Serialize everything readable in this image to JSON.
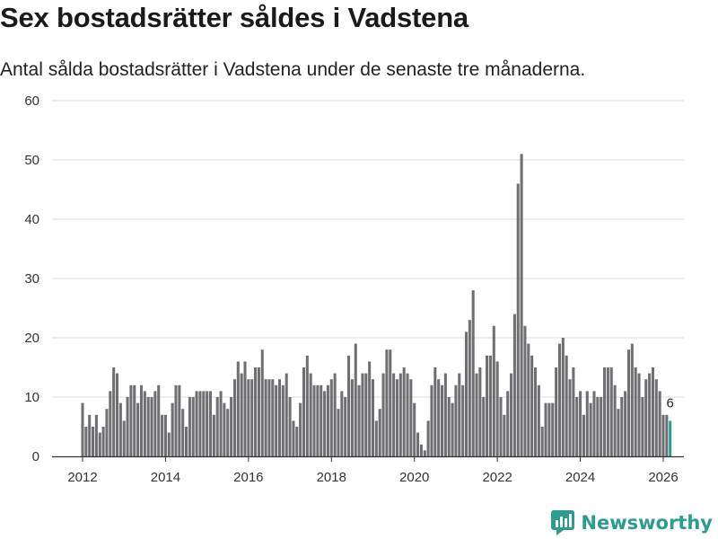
{
  "title": "Sex bostadsrätter såldes i Vadstena",
  "subtitle": "Antal sålda bostadsrätter i Vadstena under de senaste tre månaderna.",
  "brand": {
    "name": "Newsworthy",
    "icon": "bar-chart-bubble-icon"
  },
  "colors": {
    "bar": "#6f6f73",
    "highlight": "#2a9d8f",
    "grid": "#dddddd",
    "axis": "#333333",
    "brand": "#2a9d8f"
  },
  "chart_data": {
    "type": "bar",
    "title": "Sex bostadsrätter såldes i Vadstena",
    "xlabel": "",
    "ylabel": "",
    "ylim": [
      0,
      60
    ],
    "yticks": [
      0,
      10,
      20,
      30,
      40,
      50,
      60
    ],
    "xticks": [
      "2012",
      "2014",
      "2016",
      "2018",
      "2020",
      "2022",
      "2024",
      "2026"
    ],
    "start": "2012-01",
    "frequency": "monthly",
    "values": [
      9,
      5,
      7,
      5,
      7,
      4,
      5,
      8,
      11,
      15,
      14,
      9,
      6,
      10,
      12,
      12,
      9,
      12,
      11,
      10,
      10,
      11,
      12,
      7,
      7,
      4,
      9,
      12,
      12,
      8,
      5,
      10,
      10,
      11,
      11,
      11,
      11,
      11,
      7,
      10,
      11,
      9,
      8,
      10,
      13,
      16,
      14,
      16,
      13,
      13,
      15,
      15,
      18,
      13,
      13,
      13,
      12,
      13,
      12,
      14,
      10,
      6,
      5,
      9,
      15,
      17,
      14,
      12,
      12,
      12,
      11,
      12,
      13,
      14,
      8,
      11,
      10,
      17,
      13,
      19,
      12,
      14,
      14,
      16,
      13,
      6,
      8,
      14,
      18,
      18,
      14,
      13,
      14,
      15,
      14,
      13,
      9,
      4,
      2,
      1,
      6,
      12,
      15,
      13,
      12,
      14,
      10,
      9,
      12,
      14,
      12,
      21,
      23,
      28,
      14,
      15,
      10,
      17,
      17,
      22,
      16,
      10,
      7,
      11,
      14,
      24,
      46,
      51,
      22,
      19,
      17,
      15,
      12,
      5,
      9,
      9,
      9,
      15,
      19,
      20,
      17,
      13,
      15,
      10,
      11,
      7,
      11,
      9,
      11,
      10,
      10,
      15,
      15,
      15,
      12,
      8,
      10,
      11,
      18,
      19,
      15,
      14,
      10,
      13,
      14,
      15,
      13,
      11,
      7,
      7,
      6
    ],
    "highlight_last": true,
    "last_value_label": "6"
  }
}
